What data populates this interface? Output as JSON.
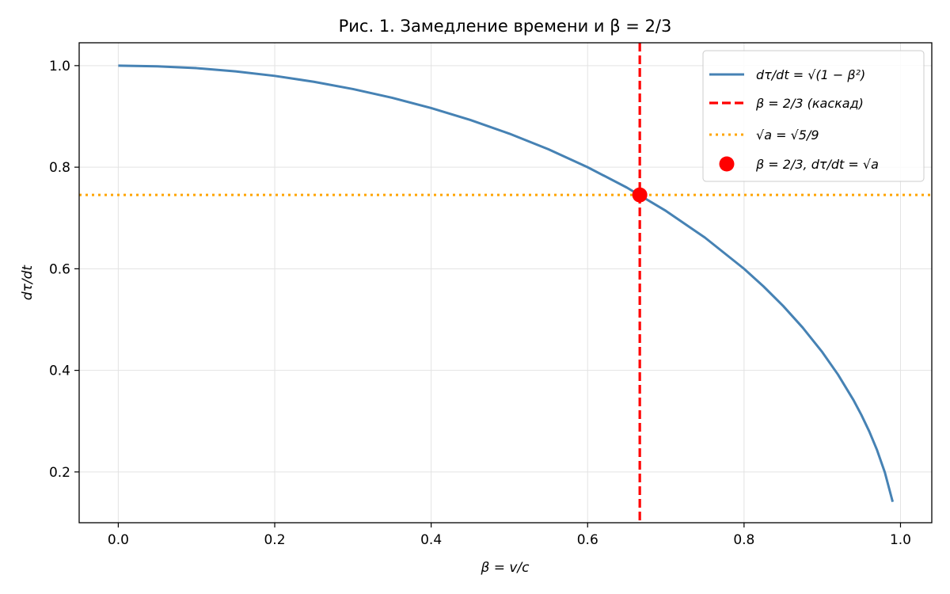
{
  "chart_data": {
    "type": "line",
    "title": "Рис. 1. Замедление времени и β = 2/3",
    "xlabel": "β = v/c",
    "ylabel": "dτ/dt",
    "xlim": [
      -0.05,
      1.04
    ],
    "ylim": [
      0.1,
      1.045
    ],
    "xticks": [
      0.0,
      0.2,
      0.4,
      0.6,
      0.8,
      1.0
    ],
    "xtick_labels": [
      "0.0",
      "0.2",
      "0.4",
      "0.6",
      "0.8",
      "1.0"
    ],
    "yticks": [
      0.2,
      0.4,
      0.6,
      0.8,
      1.0
    ],
    "ytick_labels": [
      "0.2",
      "0.4",
      "0.6",
      "0.8",
      "1.0"
    ],
    "grid": true,
    "legend_position": "top-right",
    "series": [
      {
        "name": "dτ/dt = √(1 − β²)",
        "kind": "line",
        "color": "#4682b4",
        "x": [
          0,
          0.05,
          0.1,
          0.15,
          0.2,
          0.25,
          0.3,
          0.35,
          0.4,
          0.45,
          0.5,
          0.55,
          0.6,
          0.65,
          0.7,
          0.75,
          0.8,
          0.825,
          0.85,
          0.875,
          0.9,
          0.92,
          0.94,
          0.95,
          0.96,
          0.97,
          0.98,
          0.99
        ],
        "y": [
          1.0,
          0.9987,
          0.995,
          0.9887,
          0.9798,
          0.9682,
          0.9539,
          0.9367,
          0.9165,
          0.893,
          0.866,
          0.8352,
          0.8,
          0.76,
          0.7141,
          0.6614,
          0.6,
          0.5651,
          0.5268,
          0.4841,
          0.4359,
          0.3919,
          0.3412,
          0.3122,
          0.28,
          0.2431,
          0.199,
          0.1411
        ]
      },
      {
        "name": "β = 2/3 (каскад)",
        "kind": "vline",
        "color": "#ff0000",
        "x": 0.6667
      },
      {
        "name": "√a = √5/9",
        "kind": "hline",
        "color": "#ffa500",
        "y": 0.7454
      },
      {
        "name": "β = 2/3,  dτ/dt = √a",
        "kind": "point",
        "color": "#ff0000",
        "x": 0.6667,
        "y": 0.7454
      }
    ]
  }
}
